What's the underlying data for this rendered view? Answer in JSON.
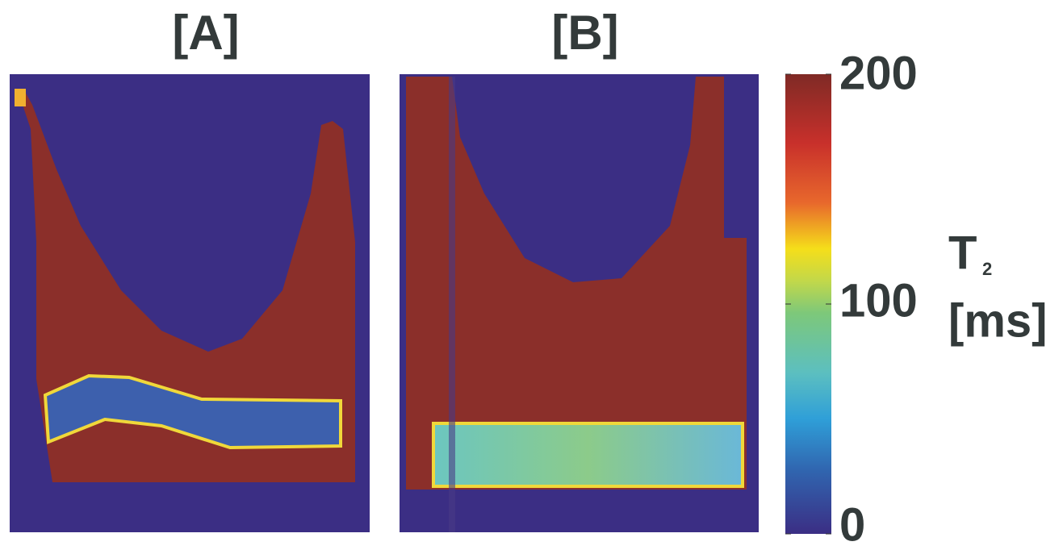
{
  "panels": [
    {
      "label": "[A]"
    },
    {
      "label": "[B]"
    }
  ],
  "colorbar": {
    "quantity": "T",
    "subscript": "2",
    "unit": "[ms]",
    "lim": [
      0,
      200
    ],
    "ticks": [
      0,
      100,
      200
    ]
  }
}
